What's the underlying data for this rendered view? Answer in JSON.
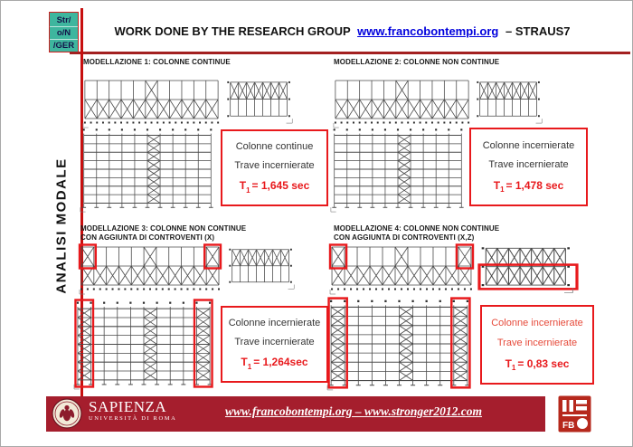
{
  "logo": {
    "lines": [
      "Str/",
      "o/N",
      "/GER"
    ]
  },
  "header": {
    "title": "WORK DONE BY THE RESEARCH GROUP",
    "link": "www.francobontempi.org",
    "suffix": "– STRAUS7"
  },
  "sidebar_label": "ANALISI MODALE",
  "colors": {
    "accent_red": "#e8191c",
    "divider_red": "#c70f0f",
    "footer_red": "#a51e2d",
    "logo_teal": "#3eb69e",
    "link_blue": "#0000dd",
    "frame_line": "#4a4a4a"
  },
  "models": [
    {
      "title_lines": [
        "MODELLAZIONE 1: COLONNE  CONTINUE"
      ],
      "result": {
        "line1": "Colonne continue",
        "line2": "Trave incernierate",
        "t_label": "T",
        "t_sub": "1",
        "t_value": "= 1,645 sec",
        "all_red": false
      },
      "diagrams": {
        "elevation": {
          "bays": 11,
          "top_braced": [
            5
          ],
          "red_boxes": []
        },
        "side": {
          "bays": 7,
          "top_x": true,
          "bottom_x": false,
          "red_bottom": false
        },
        "grid": {
          "cols": 11,
          "rows": 8,
          "braced": [
            5
          ],
          "red": []
        }
      }
    },
    {
      "title_lines": [
        "MODELLAZIONE 2: COLONNE NON CONTINUE"
      ],
      "result": {
        "line1": "Colonne incernierate",
        "line2": "Trave incernierate",
        "t_label": "T",
        "t_sub": "1",
        "t_value": "= 1,478 sec",
        "all_red": false
      },
      "diagrams": {
        "elevation": {
          "bays": 11,
          "top_braced": [
            5
          ],
          "red_boxes": []
        },
        "side": {
          "bays": 7,
          "top_x": true,
          "bottom_x": false,
          "red_bottom": false
        },
        "grid": {
          "cols": 11,
          "rows": 8,
          "braced": [
            5
          ],
          "red": []
        }
      }
    },
    {
      "title_lines": [
        "MODELLAZIONE 3: COLONNE NON CONTINUE",
        "CON AGGIUNTA DI CONTROVENTI (X)"
      ],
      "result": {
        "line1": "Colonne incernierate",
        "line2": "Trave incernierate",
        "t_label": "T",
        "t_sub": "1",
        "t_value": "= 1,264sec",
        "all_red": false
      },
      "diagrams": {
        "elevation": {
          "bays": 11,
          "top_braced": [
            0,
            5,
            10
          ],
          "red_boxes": [
            0,
            10
          ]
        },
        "side": {
          "bays": 7,
          "top_x": true,
          "bottom_x": false,
          "red_bottom": false
        },
        "grid": {
          "cols": 11,
          "rows": 8,
          "braced": [
            0,
            5,
            9
          ],
          "red": [
            0,
            9
          ]
        }
      }
    },
    {
      "title_lines": [
        "MODELLAZIONE 4: COLONNE NON CONTINUE",
        "CON AGGIUNTA DI CONTROVENTI (X,Z)"
      ],
      "result": {
        "line1": "Colonne incernierate",
        "line2": "Trave incernierate",
        "t_label": "T",
        "t_sub": "1",
        "t_value": "= 0,83 sec",
        "all_red": true
      },
      "diagrams": {
        "elevation": {
          "bays": 11,
          "top_braced": [
            0,
            5,
            10
          ],
          "red_boxes": [
            0,
            10
          ]
        },
        "side": {
          "bays": 7,
          "top_x": true,
          "bottom_x": true,
          "red_bottom": true
        },
        "grid": {
          "cols": 11,
          "rows": 8,
          "braced": [
            0,
            5,
            9
          ],
          "red": [
            0,
            9
          ]
        }
      }
    }
  ],
  "footer": {
    "institution": "SAPIENZA",
    "institution_sub": "UNIVERSITÀ DI ROMA",
    "link": "www.francobontempi.org – www.stronger2012.com",
    "seal_text": "FB"
  }
}
